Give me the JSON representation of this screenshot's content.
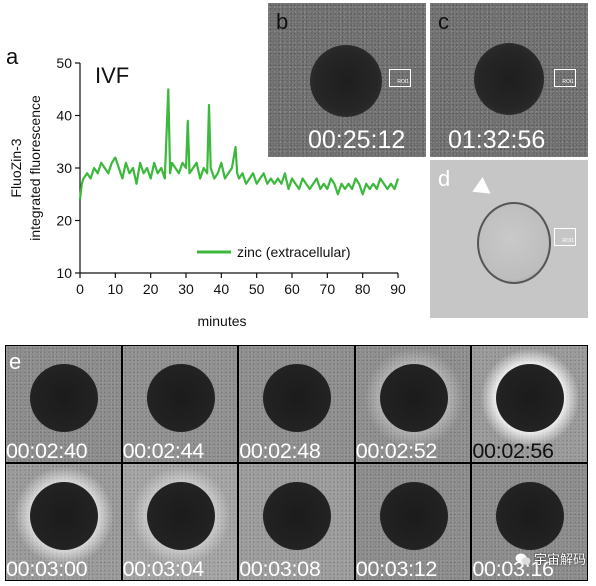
{
  "panel_labels": {
    "a": "a",
    "b": "b",
    "c": "c",
    "d": "d",
    "e": "e"
  },
  "chart_data": {
    "type": "line",
    "title": "IVF",
    "xlabel": "minutes",
    "ylabel_line1": "FluoZin-3",
    "ylabel_line2": "integrated fluorescence",
    "xlim": [
      0,
      90
    ],
    "ylim": [
      10,
      50
    ],
    "xticks": [
      "0",
      "10",
      "20",
      "30",
      "40",
      "50",
      "60",
      "70",
      "80",
      "90"
    ],
    "yticks": [
      "10",
      "20",
      "30",
      "40",
      "50"
    ],
    "legend": {
      "label": "zinc (extracellular)",
      "position": "bottom-right"
    },
    "series": [
      {
        "name": "zinc (extracellular)",
        "color": "#3cb83c",
        "x": [
          0,
          0.5,
          1,
          2,
          3,
          4,
          5,
          6,
          7,
          8,
          9,
          10,
          11,
          12,
          13,
          14,
          15,
          16,
          17,
          18,
          19,
          20,
          21,
          22,
          23,
          24,
          25,
          25.5,
          26,
          27,
          28,
          29,
          30,
          30.5,
          31,
          32,
          33,
          34,
          35,
          36,
          36.5,
          37,
          38,
          39,
          40,
          41,
          42,
          43,
          44,
          44.5,
          45,
          46,
          47,
          48,
          49,
          50,
          51,
          52,
          53,
          54,
          55,
          56,
          57,
          58,
          59,
          60,
          61,
          62,
          63,
          64,
          65,
          66,
          67,
          68,
          69,
          70,
          71,
          72,
          73,
          74,
          75,
          76,
          77,
          78,
          79,
          80,
          81,
          82,
          83,
          84,
          85,
          86,
          87,
          88,
          89,
          90
        ],
        "y": [
          24,
          27,
          28,
          29,
          28,
          30,
          29,
          31,
          30,
          29,
          31,
          32,
          30,
          28,
          31,
          29,
          30,
          27,
          31,
          29,
          30,
          28,
          31,
          29,
          30,
          28,
          45,
          29,
          31,
          30,
          29,
          31,
          30,
          39,
          29,
          30,
          31,
          28,
          30,
          29,
          42,
          30,
          28,
          29,
          31,
          28,
          29,
          30,
          34,
          29,
          28,
          29,
          27,
          28,
          29,
          27,
          28,
          29,
          27,
          28,
          27,
          28,
          27,
          29,
          26,
          28,
          27,
          26,
          28,
          27,
          26,
          27,
          28,
          26,
          27,
          26,
          28,
          27,
          25,
          27,
          26,
          27,
          26,
          28,
          27,
          25,
          27,
          26,
          27,
          26,
          28,
          27,
          26,
          27,
          26,
          28
        ]
      }
    ]
  },
  "micrographs": {
    "b": {
      "time": "00:25:12",
      "roi_label": "ROI1"
    },
    "c": {
      "time": "01:32:56",
      "roi_label": "ROI1"
    },
    "d": {
      "roi_label": "ROI1"
    }
  },
  "timelapse": {
    "row1": [
      "00:02:40",
      "00:02:44",
      "00:02:48",
      "00:02:52",
      "00:02:56"
    ],
    "row2": [
      "00:03:00",
      "00:03:04",
      "00:03:08",
      "00:03:12",
      "00:03:16"
    ]
  },
  "watermark": {
    "text": "宇宙解码"
  }
}
